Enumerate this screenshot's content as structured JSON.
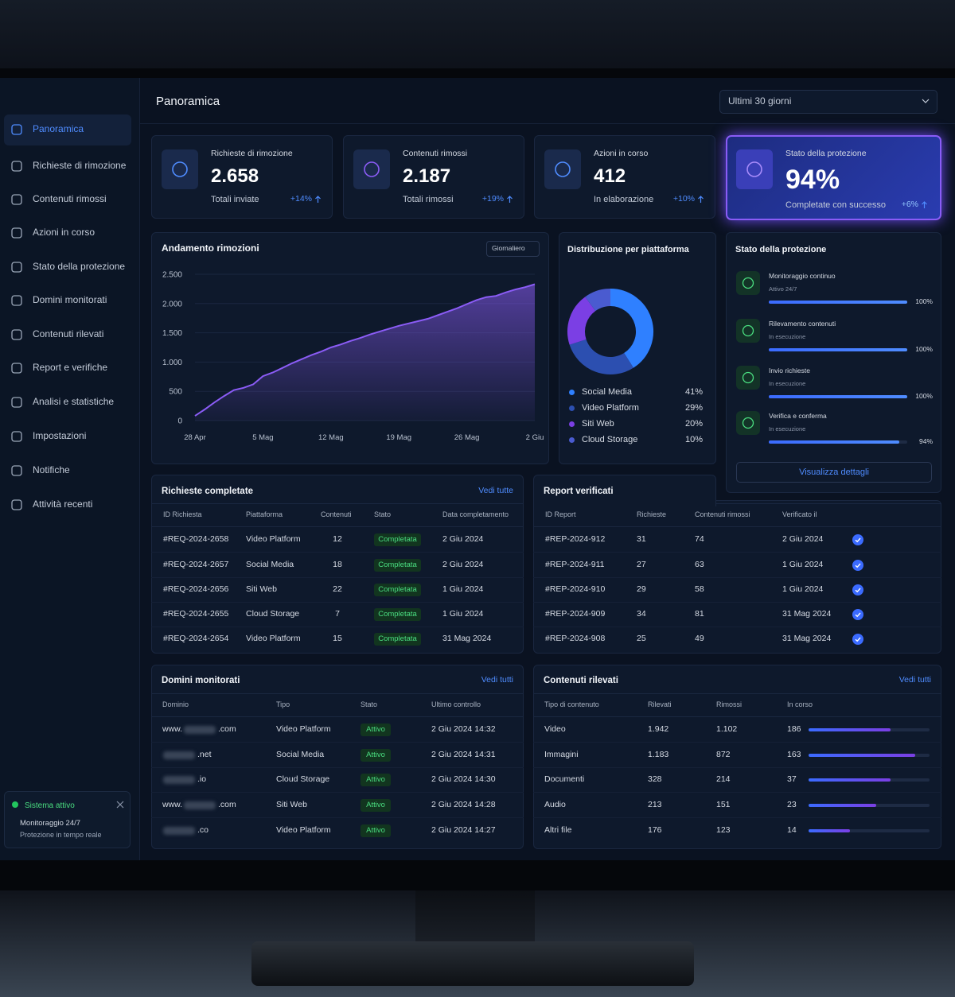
{
  "sidebar": {
    "items": [
      "Panoramica",
      "Richieste di rimozione",
      "Contenuti rimossi",
      "Azioni in corso",
      "Stato della protezione",
      "Domini monitorati",
      "Contenuti rilevati",
      "Report e verifiche",
      "Analisi e statistiche",
      "Impostazioni",
      "Notifiche",
      "Attività recenti"
    ],
    "status": {
      "title": "Sistema attivo",
      "line1": "Monitoraggio 24/7",
      "line2": "Protezione in tempo reale"
    }
  },
  "header": {
    "title": "Panoramica",
    "range": "Ultimi 30 giorni"
  },
  "kpis": [
    {
      "label": "Richieste di rimozione",
      "value": "2.658",
      "sub": "Totali inviate",
      "delta": "+14%"
    },
    {
      "label": "Contenuti rimossi",
      "value": "2.187",
      "sub": "Totali rimossi",
      "delta": "+19%"
    },
    {
      "label": "Azioni in corso",
      "value": "412",
      "sub": "In elaborazione",
      "delta": "+10%"
    },
    {
      "label": "Stato della protezione",
      "value": "94%",
      "sub": "Completate con successo",
      "delta": "+6%"
    }
  ],
  "chart_data": [
    {
      "type": "line",
      "title": "Andamento rimozioni",
      "selector": "Giornaliero",
      "categories": [
        "28 Apr",
        null,
        null,
        null,
        null,
        null,
        null,
        "5 Mag",
        null,
        null,
        null,
        null,
        null,
        null,
        "12 Mag",
        null,
        null,
        null,
        null,
        null,
        null,
        "19 Mag",
        null,
        null,
        null,
        null,
        null,
        null,
        "26 Mag",
        null,
        null,
        null,
        null,
        null,
        null,
        "2 Giu"
      ],
      "values": [
        80,
        190,
        310,
        420,
        520,
        560,
        620,
        760,
        820,
        900,
        980,
        1050,
        1120,
        1180,
        1250,
        1300,
        1360,
        1410,
        1470,
        1520,
        1570,
        1620,
        1660,
        1700,
        1740,
        1800,
        1860,
        1920,
        1990,
        2060,
        2110,
        2130,
        2190,
        2240,
        2280,
        2330
      ],
      "color": "#8b5cf6",
      "ylim": [
        0,
        2500
      ],
      "yticks": [
        0,
        500,
        {
          "value": 1000,
          "label": "1.000"
        },
        {
          "value": 1500,
          "label": "1.500"
        },
        {
          "value": 2000,
          "label": "2.000"
        },
        {
          "value": 2500,
          "label": "2.500"
        }
      ],
      "grid": true
    },
    {
      "type": "pie",
      "title": "Distribuzione per piattaforma",
      "categories": [
        "Social Media",
        "Video Platform",
        "Siti Web",
        "Cloud Storage"
      ],
      "values": [
        41,
        29,
        20,
        10
      ],
      "value_labels": [
        "41%",
        "29%",
        "20%",
        "10%"
      ],
      "colors": [
        "#2f80ff",
        "#2c4fb0",
        "#7b3fe4",
        "#4a5bd0"
      ]
    }
  ],
  "protection": {
    "title": "Stato della protezione",
    "steps": [
      {
        "title": "Monitoraggio continuo",
        "status": "Attivo 24/7",
        "value": 100,
        "label": "100%"
      },
      {
        "title": "Rilevamento contenuti",
        "status": "In esecuzione",
        "value": 100,
        "label": "100%"
      },
      {
        "title": "Invio richieste",
        "status": "In esecuzione",
        "value": 100,
        "label": "100%"
      },
      {
        "title": "Verifica e conferma",
        "status": "In esecuzione",
        "value": 94,
        "label": "94%"
      }
    ],
    "button": "Visualizza dettagli"
  },
  "requests": {
    "title": "Richieste completate",
    "link": "Vedi tutte",
    "headers": [
      "ID Richiesta",
      "Piattaforma",
      "Contenuti",
      "Stato",
      "Data completamento"
    ],
    "rows": [
      [
        "#REQ-2024-2658",
        "Video Platform",
        "12",
        "Completata",
        "2 Giu 2024"
      ],
      [
        "#REQ-2024-2657",
        "Social Media",
        "18",
        "Completata",
        "2 Giu 2024"
      ],
      [
        "#REQ-2024-2656",
        "Siti Web",
        "22",
        "Completata",
        "1 Giu 2024"
      ],
      [
        "#REQ-2024-2655",
        "Cloud Storage",
        "7",
        "Completata",
        "1 Giu 2024"
      ],
      [
        "#REQ-2024-2654",
        "Video Platform",
        "15",
        "Completata",
        "31 Mag 2024"
      ]
    ]
  },
  "reports": {
    "title": "Report verificati",
    "headers": [
      "ID Report",
      "Richieste",
      "Contenuti rimossi",
      "Verificato il"
    ],
    "rows": [
      [
        "#REP-2024-912",
        "31",
        "74",
        "2 Giu 2024"
      ],
      [
        "#REP-2024-911",
        "27",
        "63",
        "1 Giu 2024"
      ],
      [
        "#REP-2024-910",
        "29",
        "58",
        "1 Giu 2024"
      ],
      [
        "#REP-2024-909",
        "34",
        "81",
        "31 Mag 2024"
      ],
      [
        "#REP-2024-908",
        "25",
        "49",
        "31 Mag 2024"
      ]
    ]
  },
  "domains": {
    "title": "Domini monitorati",
    "link": "Vedi tutti",
    "headers": [
      "Dominio",
      "Tipo",
      "Stato",
      "Ultimo controllo"
    ],
    "rows": [
      {
        "domain": {
          "prefix": "www.",
          "suffix": ".com"
        },
        "type": "Video Platform",
        "status": "Attivo",
        "checked": "2 Giu 2024 14:32"
      },
      {
        "domain": {
          "suffix": ".net"
        },
        "type": "Social Media",
        "status": "Attivo",
        "checked": "2 Giu 2024 14:31"
      },
      {
        "domain": {
          "suffix": ".io"
        },
        "type": "Cloud Storage",
        "status": "Attivo",
        "checked": "2 Giu 2024 14:30"
      },
      {
        "domain": {
          "prefix": "www.",
          "suffix": ".com"
        },
        "type": "Siti Web",
        "status": "Attivo",
        "checked": "2 Giu 2024 14:28"
      },
      {
        "domain": {
          "suffix": ".co"
        },
        "type": "Video Platform",
        "status": "Attivo",
        "checked": "2 Giu 2024 14:27"
      }
    ]
  },
  "contents": {
    "title": "Contenuti rilevati",
    "link": "Vedi tutti",
    "headers": [
      "Tipo di contenuto",
      "Rilevati",
      "Rimossi",
      "In corso"
    ],
    "rows": [
      {
        "cells": [
          "Video",
          "1.942",
          "1.102",
          "186"
        ],
        "progress": 68
      },
      {
        "cells": [
          "Immagini",
          "1.183",
          "872",
          "163"
        ],
        "progress": 88
      },
      {
        "cells": [
          "Documenti",
          "328",
          "214",
          "37"
        ],
        "progress": 68
      },
      {
        "cells": [
          "Audio",
          "213",
          "151",
          "23"
        ],
        "progress": 56
      },
      {
        "cells": [
          "Altri file",
          "176",
          "123",
          "14"
        ],
        "progress": 34
      }
    ]
  }
}
